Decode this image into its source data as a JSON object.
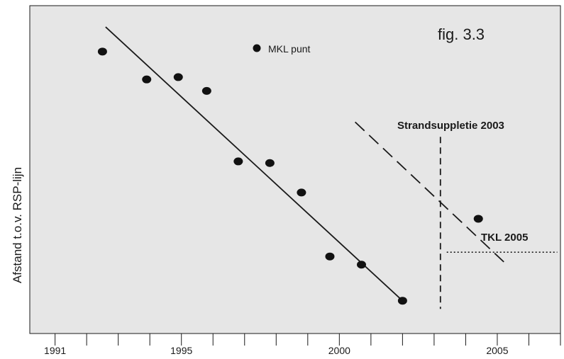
{
  "chart_data": {
    "type": "scatter",
    "title": "fig.  3.3",
    "ylabel": "Afstand t.o.v. RSP-lijn",
    "xlabel": "",
    "xlim": [
      1990.2,
      2007
    ],
    "ylim": [
      0,
      1
    ],
    "x_tick_labels": [
      "1991",
      "1995",
      "2000",
      "2005"
    ],
    "x_tick_values": [
      1991,
      1995,
      2000,
      2005
    ],
    "x_minor_ticks": [
      1991,
      1992,
      1993,
      1994,
      1995,
      1996,
      1997,
      1998,
      1999,
      2000,
      2001,
      2002,
      2003,
      2004,
      2005,
      2006,
      2007
    ],
    "grid": false,
    "background": "#e6e6e6",
    "legend": {
      "label": "MKL punt",
      "position": "top-center"
    },
    "series": [
      {
        "name": "MKL punt",
        "points": [
          {
            "x": 1992.5,
            "y": 0.86
          },
          {
            "x": 1993.9,
            "y": 0.775
          },
          {
            "x": 1994.9,
            "y": 0.782
          },
          {
            "x": 1995.8,
            "y": 0.74
          },
          {
            "x": 1996.8,
            "y": 0.525
          },
          {
            "x": 1997.8,
            "y": 0.52
          },
          {
            "x": 1998.8,
            "y": 0.43
          },
          {
            "x": 1999.7,
            "y": 0.235
          },
          {
            "x": 2000.7,
            "y": 0.21
          },
          {
            "x": 2002.0,
            "y": 0.1
          },
          {
            "x": 2004.4,
            "y": 0.35
          }
        ]
      }
    ],
    "trend_lines": [
      {
        "style": "solid",
        "from": {
          "x": 1992.6,
          "y": 0.935
        },
        "to": {
          "x": 2002.0,
          "y": 0.1
        }
      },
      {
        "style": "dashed",
        "from": {
          "x": 2000.5,
          "y": 0.645
        },
        "to": {
          "x": 2005.3,
          "y": 0.21
        }
      }
    ],
    "annotations": [
      {
        "text": "Strandsuppletie 2003",
        "x": 2003.2,
        "style": "dashed-vertical",
        "y_top": 0.6,
        "y_bottom": 0.075
      },
      {
        "text": "TKL 2005",
        "y": 0.248,
        "style": "dotted-horizontal",
        "x_from": 2003.4,
        "x_to": 2006.9
      }
    ]
  }
}
